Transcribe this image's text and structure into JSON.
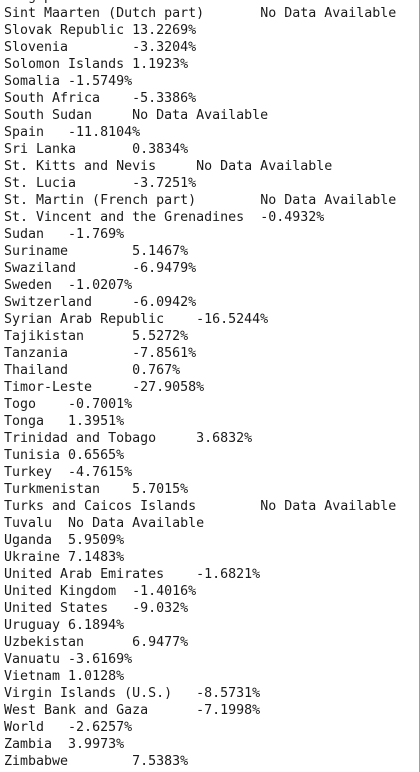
{
  "document": {
    "rows": [
      {
        "name": "Singapore"
      },
      {
        "name": "Sint Maarten (Dutch part)",
        "value": "No Data Available"
      },
      {
        "name": "Slovak Republic",
        "value": "13.2269%"
      },
      {
        "name": "Slovenia",
        "value": "-3.3204%"
      },
      {
        "name": "Solomon Islands",
        "value": "1.1923%"
      },
      {
        "name": "Somalia",
        "value": "-1.5749%"
      },
      {
        "name": "South Africa",
        "value": "-5.3386%"
      },
      {
        "name": "South Sudan",
        "value": "No Data Available"
      },
      {
        "name": "Spain",
        "value": "-11.8104%"
      },
      {
        "name": "Sri Lanka",
        "value": "0.3834%"
      },
      {
        "name": "St. Kitts and Nevis",
        "value": "No Data Available"
      },
      {
        "name": "St. Lucia",
        "value": "-3.7251%"
      },
      {
        "name": "St. Martin (French part)",
        "value": "No Data Available"
      },
      {
        "name": "St. Vincent and the Grenadines",
        "value": "-0.4932%"
      },
      {
        "name": "Sudan",
        "value": "-1.769%"
      },
      {
        "name": "Suriname",
        "value": "5.1467%"
      },
      {
        "name": "Swaziland",
        "value": "-6.9479%"
      },
      {
        "name": "Sweden",
        "value": "-1.0207%"
      },
      {
        "name": "Switzerland",
        "value": "-6.0942%"
      },
      {
        "name": "Syrian Arab Republic",
        "value": "-16.5244%"
      },
      {
        "name": "Tajikistan",
        "value": "5.5272%"
      },
      {
        "name": "Tanzania",
        "value": "-7.8561%"
      },
      {
        "name": "Thailand",
        "value": "0.767%"
      },
      {
        "name": "Timor-Leste",
        "value": "-27.9058%"
      },
      {
        "name": "Togo",
        "value": "-0.7001%"
      },
      {
        "name": "Tonga",
        "value": "1.3951%"
      },
      {
        "name": "Trinidad and Tobago",
        "value": "3.6832%"
      },
      {
        "name": "Tunisia",
        "value": "0.6565%"
      },
      {
        "name": "Turkey",
        "value": "-4.7615%"
      },
      {
        "name": "Turkmenistan",
        "value": "5.7015%"
      },
      {
        "name": "Turks and Caicos Islands",
        "value": "No Data Available"
      },
      {
        "name": "Tuvalu",
        "value": "No Data Available"
      },
      {
        "name": "Uganda",
        "value": "5.9509%"
      },
      {
        "name": "Ukraine",
        "value": "7.1483%"
      },
      {
        "name": "United Arab Emirates",
        "value": "-1.6821%"
      },
      {
        "name": "United Kingdom",
        "value": "-1.4016%"
      },
      {
        "name": "United States",
        "value": "-9.032%"
      },
      {
        "name": "Uruguay",
        "value": "6.1894%"
      },
      {
        "name": "Uzbekistan",
        "value": "6.9477%"
      },
      {
        "name": "Vanuatu",
        "value": "-3.6169%"
      },
      {
        "name": "Vietnam",
        "value": "1.0128%"
      },
      {
        "name": "Virgin Islands (U.S.)",
        "value": "-8.5731%"
      },
      {
        "name": "West Bank and Gaza",
        "value": "-7.1998%"
      },
      {
        "name": "World",
        "value": "-2.6257%"
      },
      {
        "name": "Zambia",
        "value": "3.9973%"
      },
      {
        "name": "Zimbabwe",
        "value": "7.5383%"
      }
    ]
  }
}
